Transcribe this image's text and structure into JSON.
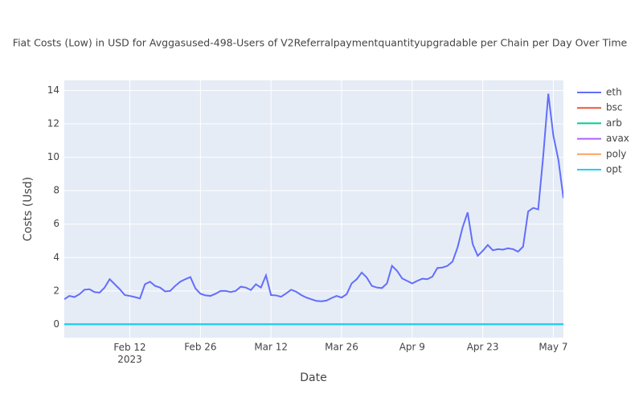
{
  "chart_data": {
    "type": "line",
    "title": "Fiat Costs (Low) in USD for Avggasused-498-Users of V2Referralpaymentquantityupgradable per Chain per Day Over Time",
    "xlabel": "Date",
    "ylabel": "Costs (Usd)",
    "x": [
      "2023-01-30",
      "2023-01-31",
      "2023-02-01",
      "2023-02-02",
      "2023-02-03",
      "2023-02-04",
      "2023-02-05",
      "2023-02-06",
      "2023-02-07",
      "2023-02-08",
      "2023-02-09",
      "2023-02-10",
      "2023-02-11",
      "2023-02-12",
      "2023-02-13",
      "2023-02-14",
      "2023-02-15",
      "2023-02-16",
      "2023-02-17",
      "2023-02-18",
      "2023-02-19",
      "2023-02-20",
      "2023-02-21",
      "2023-02-22",
      "2023-02-23",
      "2023-02-24",
      "2023-02-25",
      "2023-02-26",
      "2023-02-27",
      "2023-02-28",
      "2023-03-01",
      "2023-03-02",
      "2023-03-03",
      "2023-03-04",
      "2023-03-05",
      "2023-03-06",
      "2023-03-07",
      "2023-03-08",
      "2023-03-09",
      "2023-03-10",
      "2023-03-11",
      "2023-03-12",
      "2023-03-13",
      "2023-03-14",
      "2023-03-15",
      "2023-03-16",
      "2023-03-17",
      "2023-03-18",
      "2023-03-19",
      "2023-03-20",
      "2023-03-21",
      "2023-03-22",
      "2023-03-23",
      "2023-03-24",
      "2023-03-25",
      "2023-03-26",
      "2023-03-27",
      "2023-03-28",
      "2023-03-29",
      "2023-03-30",
      "2023-03-31",
      "2023-04-01",
      "2023-04-02",
      "2023-04-03",
      "2023-04-04",
      "2023-04-05",
      "2023-04-06",
      "2023-04-07",
      "2023-04-08",
      "2023-04-09",
      "2023-04-10",
      "2023-04-11",
      "2023-04-12",
      "2023-04-13",
      "2023-04-14",
      "2023-04-15",
      "2023-04-16",
      "2023-04-17",
      "2023-04-18",
      "2023-04-19",
      "2023-04-20",
      "2023-04-21",
      "2023-04-22",
      "2023-04-23",
      "2023-04-24",
      "2023-04-25",
      "2023-04-26",
      "2023-04-27",
      "2023-04-28",
      "2023-04-29",
      "2023-04-30",
      "2023-05-01",
      "2023-05-02",
      "2023-05-03",
      "2023-05-04",
      "2023-05-05",
      "2023-05-06",
      "2023-05-07",
      "2023-05-08",
      "2023-05-09"
    ],
    "series": [
      {
        "name": "eth",
        "color": "#636efa",
        "values": [
          1.5,
          1.7,
          1.63,
          1.8,
          2.07,
          2.1,
          1.93,
          1.9,
          2.2,
          2.7,
          2.4,
          2.1,
          1.75,
          1.7,
          1.63,
          1.55,
          2.4,
          2.55,
          2.3,
          2.2,
          1.97,
          2.0,
          2.3,
          2.55,
          2.7,
          2.83,
          2.15,
          1.83,
          1.73,
          1.7,
          1.83,
          2.0,
          2.0,
          1.93,
          2.0,
          2.25,
          2.2,
          2.05,
          2.4,
          2.2,
          2.93,
          1.75,
          1.73,
          1.65,
          1.85,
          2.07,
          1.95,
          1.75,
          1.6,
          1.5,
          1.4,
          1.38,
          1.42,
          1.57,
          1.7,
          1.6,
          1.8,
          2.45,
          2.7,
          3.1,
          2.8,
          2.3,
          2.2,
          2.17,
          2.45,
          3.5,
          3.2,
          2.75,
          2.6,
          2.45,
          2.6,
          2.73,
          2.7,
          2.85,
          3.37,
          3.4,
          3.5,
          3.75,
          4.6,
          5.8,
          6.7,
          4.8,
          4.1,
          4.4,
          4.75,
          4.43,
          4.5,
          4.47,
          4.55,
          4.5,
          4.35,
          4.65,
          6.75,
          6.97,
          6.88,
          10.1,
          13.8,
          11.3,
          9.85,
          7.55
        ]
      },
      {
        "name": "bsc",
        "color": "#EF553B",
        "values": [
          0,
          0,
          0,
          0,
          0,
          0,
          0,
          0,
          0,
          0,
          0,
          0,
          0,
          0,
          0,
          0,
          0,
          0,
          0,
          0,
          0,
          0,
          0,
          0,
          0,
          0,
          0,
          0,
          0,
          0,
          0,
          0,
          0,
          0,
          0,
          0,
          0,
          0,
          0,
          0,
          0,
          0,
          0,
          0,
          0,
          0,
          0,
          0,
          0,
          0,
          0,
          0,
          0,
          0,
          0,
          0,
          0,
          0,
          0,
          0,
          0,
          0,
          0,
          0,
          0,
          0,
          0,
          0,
          0,
          0,
          0,
          0,
          0,
          0,
          0,
          0,
          0,
          0,
          0,
          0,
          0,
          0,
          0,
          0,
          0,
          0,
          0,
          0,
          0,
          0,
          0,
          0,
          0,
          0,
          0,
          0,
          0,
          0,
          0,
          0
        ]
      },
      {
        "name": "arb",
        "color": "#00cc96",
        "values": [
          0,
          0,
          0,
          0,
          0,
          0,
          0,
          0,
          0,
          0,
          0,
          0,
          0,
          0,
          0,
          0,
          0,
          0,
          0,
          0,
          0,
          0,
          0,
          0,
          0,
          0,
          0,
          0,
          0,
          0,
          0,
          0,
          0,
          0,
          0,
          0,
          0,
          0,
          0,
          0,
          0,
          0,
          0,
          0,
          0,
          0,
          0,
          0,
          0,
          0,
          0,
          0,
          0,
          0,
          0,
          0,
          0,
          0,
          0,
          0,
          0,
          0,
          0,
          0,
          0,
          0,
          0,
          0,
          0,
          0,
          0,
          0,
          0,
          0,
          0,
          0,
          0,
          0,
          0,
          0,
          0,
          0,
          0,
          0,
          0,
          0,
          0,
          0,
          0,
          0,
          0,
          0,
          0,
          0,
          0,
          0,
          0,
          0,
          0,
          0
        ]
      },
      {
        "name": "avax",
        "color": "#ab63fa",
        "values": [
          0,
          0,
          0,
          0,
          0,
          0,
          0,
          0,
          0,
          0,
          0,
          0,
          0,
          0,
          0,
          0,
          0,
          0,
          0,
          0,
          0,
          0,
          0,
          0,
          0,
          0,
          0,
          0,
          0,
          0,
          0,
          0,
          0,
          0,
          0,
          0,
          0,
          0,
          0,
          0,
          0,
          0,
          0,
          0,
          0,
          0,
          0,
          0,
          0,
          0,
          0,
          0,
          0,
          0,
          0,
          0,
          0,
          0,
          0,
          0,
          0,
          0,
          0,
          0,
          0,
          0,
          0,
          0,
          0,
          0,
          0,
          0,
          0,
          0,
          0,
          0,
          0,
          0,
          0,
          0,
          0,
          0,
          0,
          0,
          0,
          0,
          0,
          0,
          0,
          0,
          0,
          0,
          0,
          0,
          0,
          0,
          0,
          0,
          0,
          0
        ]
      },
      {
        "name": "poly",
        "color": "#FFA15A",
        "values": [
          0,
          0,
          0,
          0,
          0,
          0,
          0,
          0,
          0,
          0,
          0,
          0,
          0,
          0,
          0,
          0,
          0,
          0,
          0,
          0,
          0,
          0,
          0,
          0,
          0,
          0,
          0,
          0,
          0,
          0,
          0,
          0,
          0,
          0,
          0,
          0,
          0,
          0,
          0,
          0,
          0,
          0,
          0,
          0,
          0,
          0,
          0,
          0,
          0,
          0,
          0,
          0,
          0,
          0,
          0,
          0,
          0,
          0,
          0,
          0,
          0,
          0,
          0,
          0,
          0,
          0,
          0,
          0,
          0,
          0,
          0,
          0,
          0,
          0,
          0,
          0,
          0,
          0,
          0,
          0,
          0,
          0,
          0,
          0,
          0,
          0,
          0,
          0,
          0,
          0,
          0,
          0,
          0,
          0,
          0,
          0,
          0,
          0,
          0,
          0
        ]
      },
      {
        "name": "opt",
        "color": "#19d3f3",
        "values": [
          0,
          0,
          0,
          0,
          0,
          0,
          0,
          0,
          0,
          0,
          0,
          0,
          0,
          0,
          0,
          0,
          0,
          0,
          0,
          0,
          0,
          0,
          0,
          0,
          0,
          0,
          0,
          0,
          0,
          0,
          0,
          0,
          0,
          0,
          0,
          0,
          0,
          0,
          0,
          0,
          0,
          0,
          0,
          0,
          0,
          0,
          0,
          0,
          0,
          0,
          0,
          0,
          0,
          0,
          0,
          0,
          0,
          0,
          0,
          0,
          0,
          0,
          0,
          0,
          0,
          0,
          0,
          0,
          0,
          0,
          0,
          0,
          0,
          0,
          0,
          0,
          0,
          0,
          0,
          0,
          0,
          0,
          0,
          0,
          0,
          0,
          0,
          0,
          0,
          0,
          0,
          0,
          0,
          0,
          0,
          0,
          0,
          0,
          0,
          0
        ]
      }
    ],
    "xlim": [
      "2023-01-30",
      "2023-05-09"
    ],
    "xticks": [
      {
        "value": "2023-02-12",
        "label": "Feb 12\n2023"
      },
      {
        "value": "2023-02-26",
        "label": "Feb 26"
      },
      {
        "value": "2023-03-12",
        "label": "Mar 12"
      },
      {
        "value": "2023-03-26",
        "label": "Mar 26"
      },
      {
        "value": "2023-04-09",
        "label": "Apr 9"
      },
      {
        "value": "2023-04-23",
        "label": "Apr 23"
      },
      {
        "value": "2023-05-07",
        "label": "May 7"
      }
    ],
    "ylim": [
      -0.8,
      14.6
    ],
    "yticks": [
      0,
      2,
      4,
      6,
      8,
      10,
      12,
      14
    ],
    "grid": true,
    "legend": "right"
  }
}
